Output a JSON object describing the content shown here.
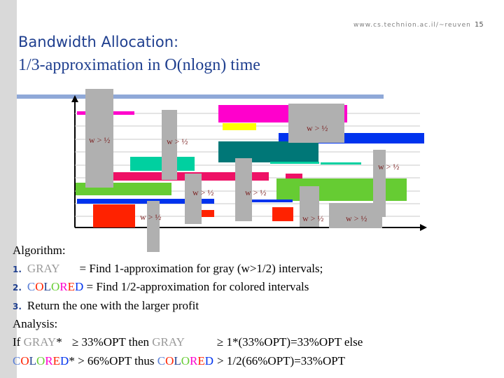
{
  "header": {
    "url": "www.cs.technion.ac.il/~reuven",
    "page_number": "15"
  },
  "title": {
    "line1": "Bandwidth Allocation:",
    "line2": "1/3-approximation in O(nlogn) time"
  },
  "diagram": {
    "w_label": "w > ½",
    "colors": {
      "gray": "#b0b0b0",
      "magenta": "#ff00cc",
      "blue": "#0033ee",
      "teal": "#007777",
      "green": "#66cc33",
      "cyan": "#00d0a0",
      "red": "#ff2200",
      "crimson": "#ee1166",
      "yellow": "#ffff00"
    }
  },
  "algorithm": {
    "heading": "Algorithm:",
    "steps": [
      {
        "num": "1.",
        "gray_word": "GRAY",
        "rest": "= Find 1-approximation for gray (w>1/2) intervals;"
      },
      {
        "num": "2.",
        "colored_word": "COLORED",
        "rest": " = Find 1/2-approximation for colored intervals"
      },
      {
        "num": "3.",
        "text": "Return the one with the larger profit"
      }
    ]
  },
  "analysis": {
    "heading": "Analysis:",
    "line1": {
      "if": "If ",
      "gray1": "GRAY",
      "star1": "* ",
      "geq1": "≥",
      "mid": " 33%OPT then ",
      "gray2": "GRAY",
      "geq2": "≥",
      "end": " 1*(33%OPT)=33%OPT else"
    },
    "line2": {
      "colored1": "COLORED",
      "star": "* ",
      "gt1": ">",
      "mid": " 66%OPT thus ",
      "colored2": "COLORED",
      "gt2": ">",
      "end": " 1/2(66%OPT)=33%OPT"
    }
  }
}
